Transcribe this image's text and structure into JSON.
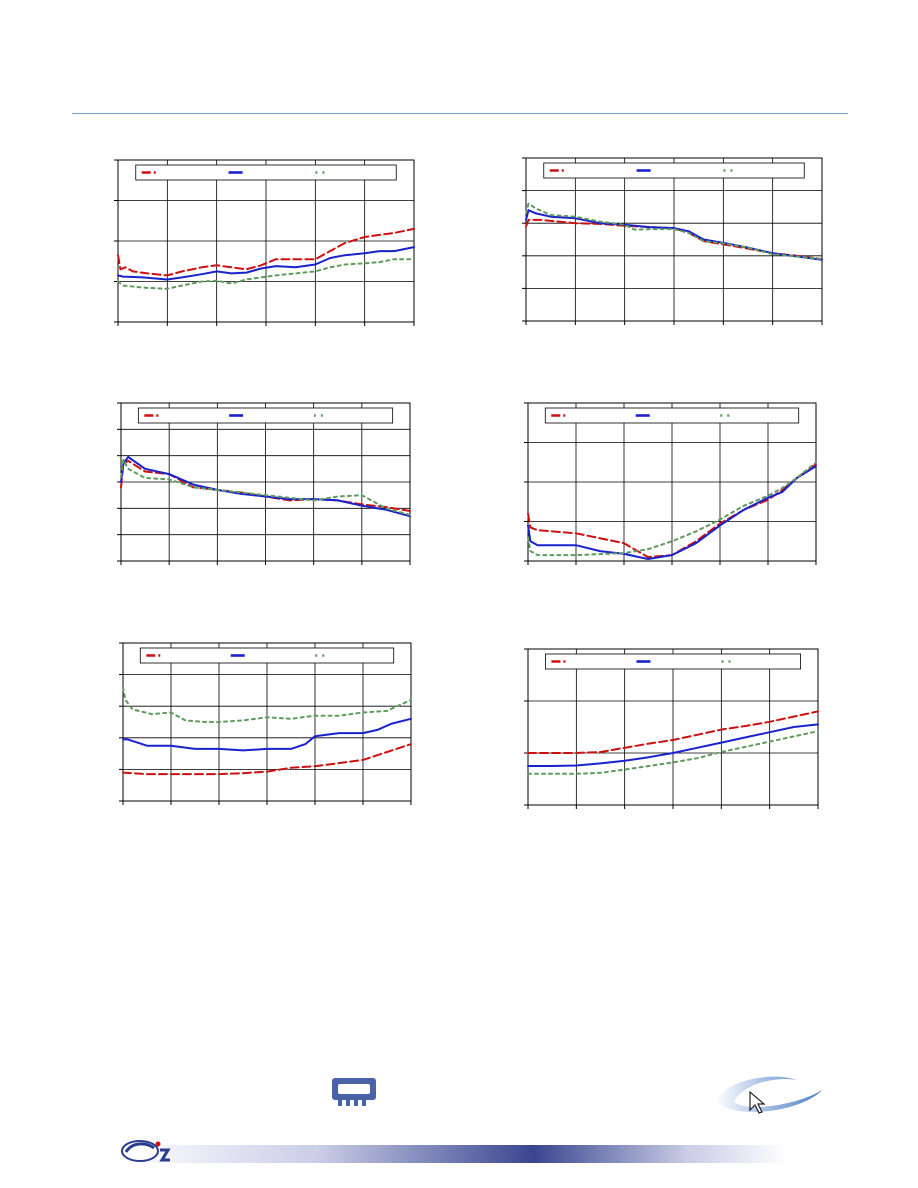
{
  "theme": {
    "series_colors": [
      "#cc1111",
      "#1a22cc",
      "#5f9a5f"
    ],
    "grid_color": "#000000",
    "rule_color": "#7f9bc7"
  },
  "icons": {
    "chip": "memory-chip-icon",
    "cursor": "cursor-arrow-icon",
    "brand": "brand-logo-icon"
  },
  "chart_data": [
    {
      "type": "line",
      "grid": true,
      "legend": "top",
      "ylim": [
        0,
        4
      ],
      "xlim": [
        0,
        6
      ],
      "series": [
        {
          "x": [
            0,
            0.05,
            0.15,
            0.3,
            0.6,
            1.0,
            1.3,
            1.7,
            2.0,
            2.3,
            2.6,
            2.9,
            3.2,
            3.6,
            4.0,
            4.3,
            4.6,
            5.0,
            5.3,
            5.6,
            6.0
          ],
          "values": [
            1.65,
            1.3,
            1.35,
            1.25,
            1.2,
            1.15,
            1.25,
            1.35,
            1.4,
            1.35,
            1.3,
            1.4,
            1.55,
            1.55,
            1.55,
            1.75,
            1.95,
            2.1,
            2.15,
            2.2,
            2.3
          ]
        },
        {
          "x": [
            0,
            0.1,
            0.5,
            1.0,
            1.3,
            1.7,
            2.0,
            2.3,
            2.6,
            2.9,
            3.2,
            3.6,
            4.0,
            4.3,
            4.6,
            5.0,
            5.3,
            5.6,
            6.0
          ],
          "values": [
            1.15,
            1.12,
            1.1,
            1.05,
            1.1,
            1.18,
            1.25,
            1.2,
            1.22,
            1.32,
            1.38,
            1.35,
            1.42,
            1.58,
            1.65,
            1.7,
            1.75,
            1.75,
            1.85
          ]
        },
        {
          "x": [
            0,
            0.1,
            0.5,
            1.0,
            1.3,
            1.7,
            2.0,
            2.3,
            2.6,
            2.9,
            3.2,
            3.6,
            4.0,
            4.3,
            4.6,
            5.0,
            5.3,
            5.6,
            6.0
          ],
          "values": [
            1.0,
            0.9,
            0.85,
            0.82,
            0.9,
            1.0,
            1.02,
            0.95,
            1.05,
            1.1,
            1.15,
            1.2,
            1.25,
            1.35,
            1.42,
            1.45,
            1.48,
            1.55,
            1.55
          ]
        }
      ]
    },
    {
      "type": "line",
      "grid": true,
      "legend": "top",
      "ylim": [
        0,
        5
      ],
      "xlim": [
        0,
        6
      ],
      "series": [
        {
          "x": [
            0,
            0.05,
            0.3,
            1.0,
            1.5,
            2.0,
            2.5,
            3.0,
            3.3,
            3.6,
            4.0,
            4.5,
            5.0,
            5.5,
            6.0
          ],
          "values": [
            2.9,
            3.1,
            3.1,
            3.0,
            2.98,
            2.92,
            2.88,
            2.85,
            2.7,
            2.45,
            2.35,
            2.22,
            2.08,
            2.0,
            1.9
          ]
        },
        {
          "x": [
            0,
            0.05,
            0.2,
            0.5,
            1.0,
            1.5,
            2.0,
            2.5,
            3.0,
            3.3,
            3.6,
            4.0,
            4.5,
            5.0,
            5.5,
            6.0
          ],
          "values": [
            3.1,
            3.4,
            3.3,
            3.2,
            3.15,
            3.0,
            2.95,
            2.88,
            2.85,
            2.75,
            2.5,
            2.4,
            2.25,
            2.08,
            1.98,
            1.88
          ]
        },
        {
          "x": [
            0,
            0.05,
            0.2,
            0.5,
            1.0,
            1.5,
            2.0,
            2.2,
            2.5,
            3.0,
            3.3,
            3.6,
            4.0,
            4.5,
            5.0,
            5.5,
            6.0
          ],
          "values": [
            3.3,
            3.6,
            3.45,
            3.25,
            3.2,
            3.05,
            2.95,
            2.8,
            2.82,
            2.82,
            2.7,
            2.45,
            2.38,
            2.25,
            2.05,
            1.98,
            1.9
          ]
        }
      ]
    },
    {
      "type": "line",
      "grid": true,
      "legend": "top",
      "ylim": [
        0,
        6
      ],
      "xlim": [
        0,
        6
      ],
      "series": [
        {
          "x": [
            0,
            0.05,
            0.15,
            0.5,
            1.0,
            1.5,
            2.0,
            2.5,
            3.0,
            3.5,
            4.0,
            4.5,
            5.0,
            5.5,
            6.0
          ],
          "values": [
            2.8,
            3.7,
            3.8,
            3.4,
            3.3,
            2.8,
            2.7,
            2.6,
            2.45,
            2.3,
            2.35,
            2.3,
            2.15,
            2.05,
            1.9
          ]
        },
        {
          "x": [
            0,
            0.05,
            0.15,
            0.5,
            1.0,
            1.5,
            2.0,
            2.5,
            3.0,
            3.5,
            4.0,
            4.5,
            5.0,
            5.5,
            6.0
          ],
          "values": [
            3.0,
            3.7,
            3.95,
            3.5,
            3.3,
            2.9,
            2.7,
            2.55,
            2.45,
            2.35,
            2.35,
            2.3,
            2.1,
            1.95,
            1.7
          ]
        },
        {
          "x": [
            0,
            0.05,
            0.15,
            0.5,
            1.0,
            1.5,
            2.0,
            2.5,
            3.0,
            3.5,
            4.0,
            4.5,
            5.0,
            5.5,
            6.0
          ],
          "values": [
            3.2,
            3.85,
            3.5,
            3.15,
            3.1,
            2.8,
            2.7,
            2.6,
            2.5,
            2.4,
            2.3,
            2.45,
            2.5,
            2.0,
            1.75
          ]
        }
      ]
    },
    {
      "type": "line",
      "grid": true,
      "legend": "top",
      "ylim": [
        0,
        4
      ],
      "xlim": [
        0,
        6
      ],
      "series": [
        {
          "x": [
            0,
            0.05,
            0.2,
            1.0,
            2.0,
            2.5,
            3.0,
            3.5,
            4.0,
            4.5,
            5.0,
            5.3,
            5.6,
            6.0
          ],
          "values": [
            1.2,
            0.85,
            0.78,
            0.7,
            0.45,
            0.1,
            0.15,
            0.5,
            0.95,
            1.3,
            1.55,
            1.8,
            2.1,
            2.45
          ]
        },
        {
          "x": [
            0,
            0.05,
            0.2,
            1.0,
            1.5,
            2.0,
            2.5,
            3.0,
            3.5,
            4.0,
            4.5,
            5.0,
            5.3,
            5.6,
            6.0
          ],
          "values": [
            0.9,
            0.5,
            0.4,
            0.4,
            0.25,
            0.18,
            0.05,
            0.15,
            0.45,
            0.9,
            1.3,
            1.6,
            1.75,
            2.1,
            2.4
          ]
        },
        {
          "x": [
            0,
            0.05,
            0.2,
            1.0,
            2.0,
            2.5,
            3.0,
            3.5,
            4.0,
            4.5,
            5.0,
            5.3,
            5.6,
            6.0
          ],
          "values": [
            0.6,
            0.25,
            0.15,
            0.15,
            0.2,
            0.3,
            0.5,
            0.75,
            1.05,
            1.4,
            1.65,
            1.85,
            2.1,
            2.5
          ]
        }
      ]
    },
    {
      "type": "line",
      "grid": true,
      "legend": "top",
      "ylim": [
        0,
        5
      ],
      "xlim": [
        0,
        6
      ],
      "series": [
        {
          "x": [
            0,
            0.5,
            1.0,
            1.5,
            2.0,
            2.5,
            3.0,
            3.5,
            4.0,
            4.5,
            5.0,
            5.5,
            6.0
          ],
          "values": [
            0.9,
            0.85,
            0.85,
            0.85,
            0.85,
            0.88,
            0.93,
            1.05,
            1.1,
            1.2,
            1.3,
            1.55,
            1.8
          ]
        },
        {
          "x": [
            0,
            0.1,
            0.5,
            1.0,
            1.5,
            2.0,
            2.5,
            3.0,
            3.5,
            3.8,
            4.0,
            4.5,
            5.0,
            5.3,
            5.6,
            6.0
          ],
          "values": [
            1.95,
            1.95,
            1.75,
            1.75,
            1.65,
            1.65,
            1.6,
            1.65,
            1.65,
            1.8,
            2.05,
            2.15,
            2.15,
            2.25,
            2.45,
            2.6
          ]
        },
        {
          "x": [
            0,
            0.05,
            0.2,
            0.6,
            1.0,
            1.3,
            1.7,
            2.0,
            2.5,
            3.0,
            3.5,
            4.0,
            4.5,
            5.0,
            5.5,
            6.0
          ],
          "values": [
            3.6,
            3.2,
            2.9,
            2.75,
            2.8,
            2.55,
            2.5,
            2.5,
            2.55,
            2.65,
            2.6,
            2.7,
            2.7,
            2.8,
            2.85,
            3.2
          ]
        }
      ]
    },
    {
      "type": "line",
      "grid": true,
      "legend": "top",
      "ylim": [
        0,
        3
      ],
      "xlim": [
        0,
        6
      ],
      "series": [
        {
          "x": [
            0,
            0.5,
            1.0,
            1.5,
            2.0,
            2.5,
            3.0,
            3.5,
            4.0,
            4.5,
            5.0,
            5.5,
            6.0
          ],
          "values": [
            1.0,
            1.0,
            1.0,
            1.02,
            1.1,
            1.18,
            1.25,
            1.35,
            1.45,
            1.52,
            1.6,
            1.7,
            1.8
          ]
        },
        {
          "x": [
            0,
            0.5,
            1.0,
            1.5,
            2.0,
            2.5,
            3.0,
            3.5,
            4.0,
            4.5,
            5.0,
            5.5,
            6.0
          ],
          "values": [
            0.75,
            0.75,
            0.76,
            0.8,
            0.85,
            0.92,
            1.0,
            1.1,
            1.2,
            1.3,
            1.4,
            1.5,
            1.55
          ]
        },
        {
          "x": [
            0,
            0.5,
            1.0,
            1.5,
            2.0,
            2.5,
            3.0,
            3.5,
            4.0,
            4.5,
            5.0,
            5.5,
            6.0
          ],
          "values": [
            0.6,
            0.6,
            0.6,
            0.62,
            0.68,
            0.75,
            0.82,
            0.9,
            1.02,
            1.12,
            1.22,
            1.32,
            1.42
          ]
        }
      ]
    }
  ]
}
